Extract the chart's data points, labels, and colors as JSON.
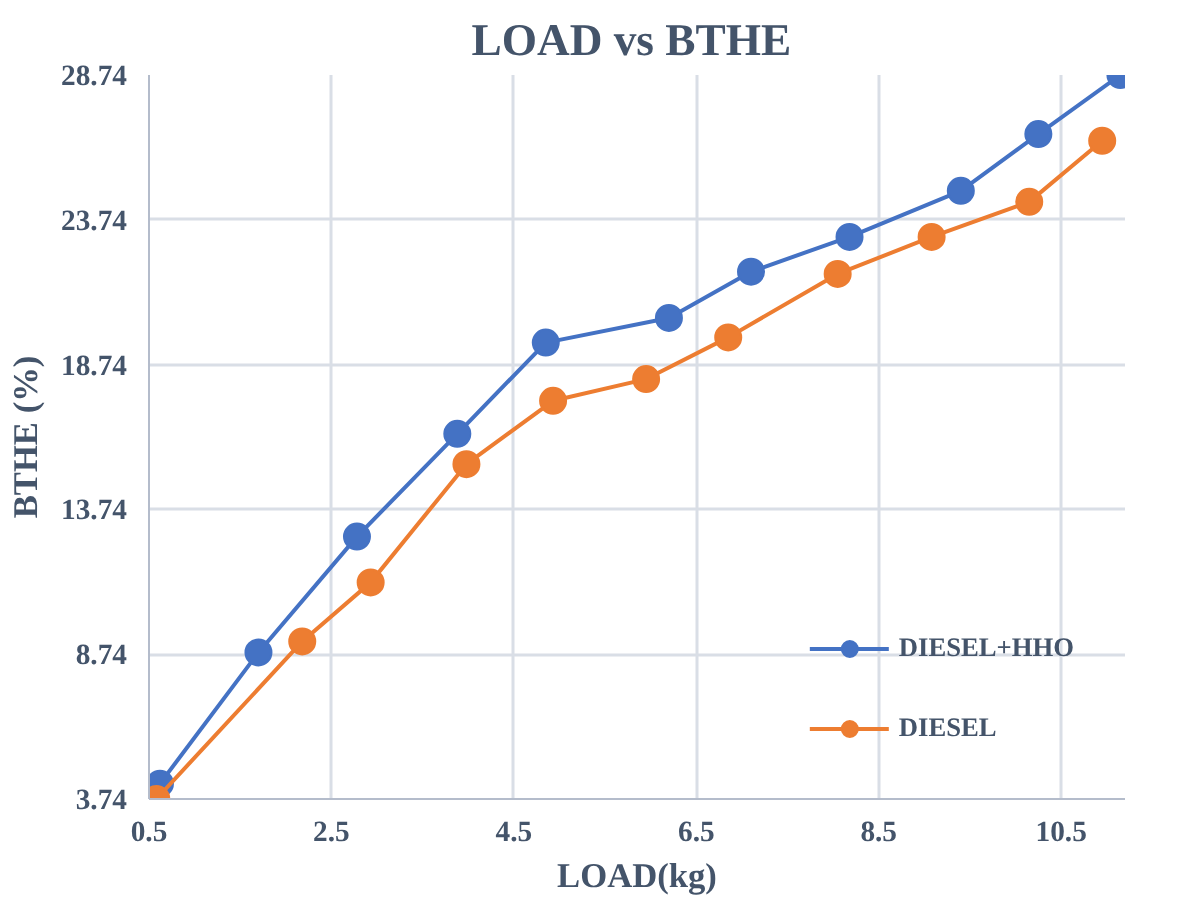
{
  "chart_data": {
    "type": "line",
    "title": "LOAD  vs BTHE",
    "xlabel": "LOAD(kg)",
    "ylabel": "BTHE (%)",
    "xlim": [
      0.5,
      11.2
    ],
    "xticks": [
      0.5,
      2.5,
      4.5,
      6.5,
      8.5,
      10.5
    ],
    "ylim": [
      3.74,
      28.74
    ],
    "yticks": [
      3.74,
      8.74,
      13.74,
      18.74,
      23.74,
      28.74
    ],
    "grid": true,
    "legend": "bottom right",
    "marker": "circle",
    "line_style": "solid",
    "series": [
      {
        "name": "DIESEL+HHO",
        "color": "#4472c4",
        "x": [
          0.62,
          1.7,
          2.78,
          3.88,
          4.85,
          6.2,
          7.1,
          8.18,
          9.4,
          10.25,
          11.15
        ],
        "values": [
          4.27,
          8.8,
          12.8,
          16.35,
          19.5,
          20.35,
          21.95,
          23.15,
          24.74,
          26.7,
          28.74
        ]
      },
      {
        "name": "DIESEL",
        "color": "#ed7d31",
        "x": [
          0.58,
          2.18,
          2.93,
          3.98,
          4.93,
          5.95,
          6.85,
          8.05,
          9.08,
          10.15,
          10.95
        ],
        "values": [
          3.74,
          9.18,
          11.22,
          15.3,
          17.49,
          18.24,
          19.68,
          21.87,
          23.15,
          24.36,
          26.47
        ]
      }
    ]
  }
}
